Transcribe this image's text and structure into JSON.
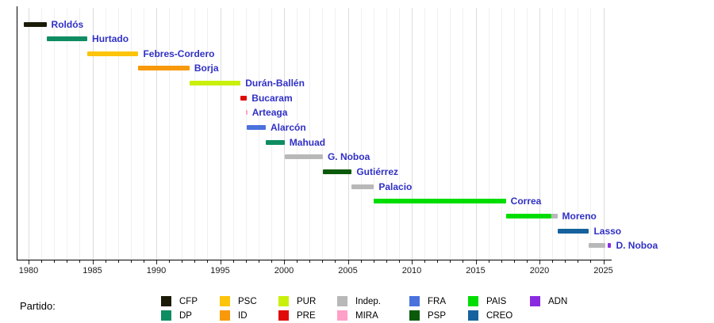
{
  "chart_data": {
    "type": "gantt-timeline",
    "title": "",
    "xlabel": "",
    "x_range": [
      1979.1,
      2025.7
    ],
    "x_ticks_major": [
      1980,
      1985,
      1990,
      1995,
      2000,
      2005,
      2010,
      2015,
      2020,
      2025
    ],
    "x_tick_minor_step": 1,
    "grid": "vertical-yearly",
    "legend_position": "bottom",
    "legend_title": "Partido:",
    "presidents": [
      {
        "name": "Roldós",
        "segments": [
          {
            "party": "CFP",
            "start": 1979.62,
            "end": 1981.4
          }
        ]
      },
      {
        "name": "Hurtado",
        "segments": [
          {
            "party": "DP",
            "start": 1981.4,
            "end": 1984.6
          }
        ]
      },
      {
        "name": "Febres-Cordero",
        "segments": [
          {
            "party": "PSC",
            "start": 1984.6,
            "end": 1988.6
          }
        ]
      },
      {
        "name": "Borja",
        "segments": [
          {
            "party": "ID",
            "start": 1988.6,
            "end": 1992.6
          }
        ]
      },
      {
        "name": "Durán-Ballén",
        "segments": [
          {
            "party": "PUR",
            "start": 1992.6,
            "end": 1996.6
          }
        ]
      },
      {
        "name": "Bucaram",
        "segments": [
          {
            "party": "PRE",
            "start": 1996.6,
            "end": 1997.1
          }
        ]
      },
      {
        "name": "Arteaga",
        "segments": [
          {
            "party": "MIRA",
            "start": 1997.0,
            "end": 1997.1
          }
        ]
      },
      {
        "name": "Alarcón",
        "segments": [
          {
            "party": "FRA",
            "start": 1997.1,
            "end": 1998.57
          }
        ]
      },
      {
        "name": "Mahuad",
        "segments": [
          {
            "party": "DP",
            "start": 1998.57,
            "end": 2000.05
          }
        ]
      },
      {
        "name": "G. Noboa",
        "segments": [
          {
            "party": "Indep.",
            "start": 2000.05,
            "end": 2003.04
          }
        ]
      },
      {
        "name": "Gutiérrez",
        "segments": [
          {
            "party": "PSP",
            "start": 2003.04,
            "end": 2005.3
          }
        ]
      },
      {
        "name": "Palacio",
        "segments": [
          {
            "party": "Indep.",
            "start": 2005.3,
            "end": 2007.04
          }
        ]
      },
      {
        "name": "Correa",
        "segments": [
          {
            "party": "PAIS",
            "start": 2007.04,
            "end": 2017.37
          }
        ]
      },
      {
        "name": "Moreno",
        "segments": [
          {
            "party": "PAIS",
            "start": 2017.37,
            "end": 2020.93
          },
          {
            "party": "Indep.",
            "start": 2020.93,
            "end": 2021.4
          }
        ]
      },
      {
        "name": "Lasso",
        "segments": [
          {
            "party": "CREO",
            "start": 2021.4,
            "end": 2023.88
          }
        ]
      },
      {
        "name": "D. Noboa",
        "segments": [
          {
            "party": "Indep.",
            "start": 2023.88,
            "end": 2025.15
          },
          {
            "party": "ADN",
            "start": 2025.32,
            "end": 2025.62
          }
        ]
      }
    ],
    "parties": {
      "CFP": "#1b1b07",
      "DP": "#0e8c62",
      "PSC": "#fcc40a",
      "ID": "#f8990a",
      "PUR": "#c9f00a",
      "PRE": "#e00a0a",
      "Indep.": "#b8b8b8",
      "MIRA": "#ffa0c8",
      "FRA": "#4a72dd",
      "PSP": "#0a5a0a",
      "PAIS": "#00dd00",
      "CREO": "#16629e",
      "ADN": "#8a2be2"
    },
    "legend_columns": [
      [
        "CFP",
        "DP"
      ],
      [
        "PSC",
        "ID"
      ],
      [
        "PUR",
        "PRE"
      ],
      [
        "Indep.",
        "MIRA"
      ],
      [
        "FRA",
        "PSP"
      ],
      [
        "PAIS",
        "CREO"
      ],
      [
        "ADN"
      ]
    ],
    "label_color": "#3030c6"
  }
}
